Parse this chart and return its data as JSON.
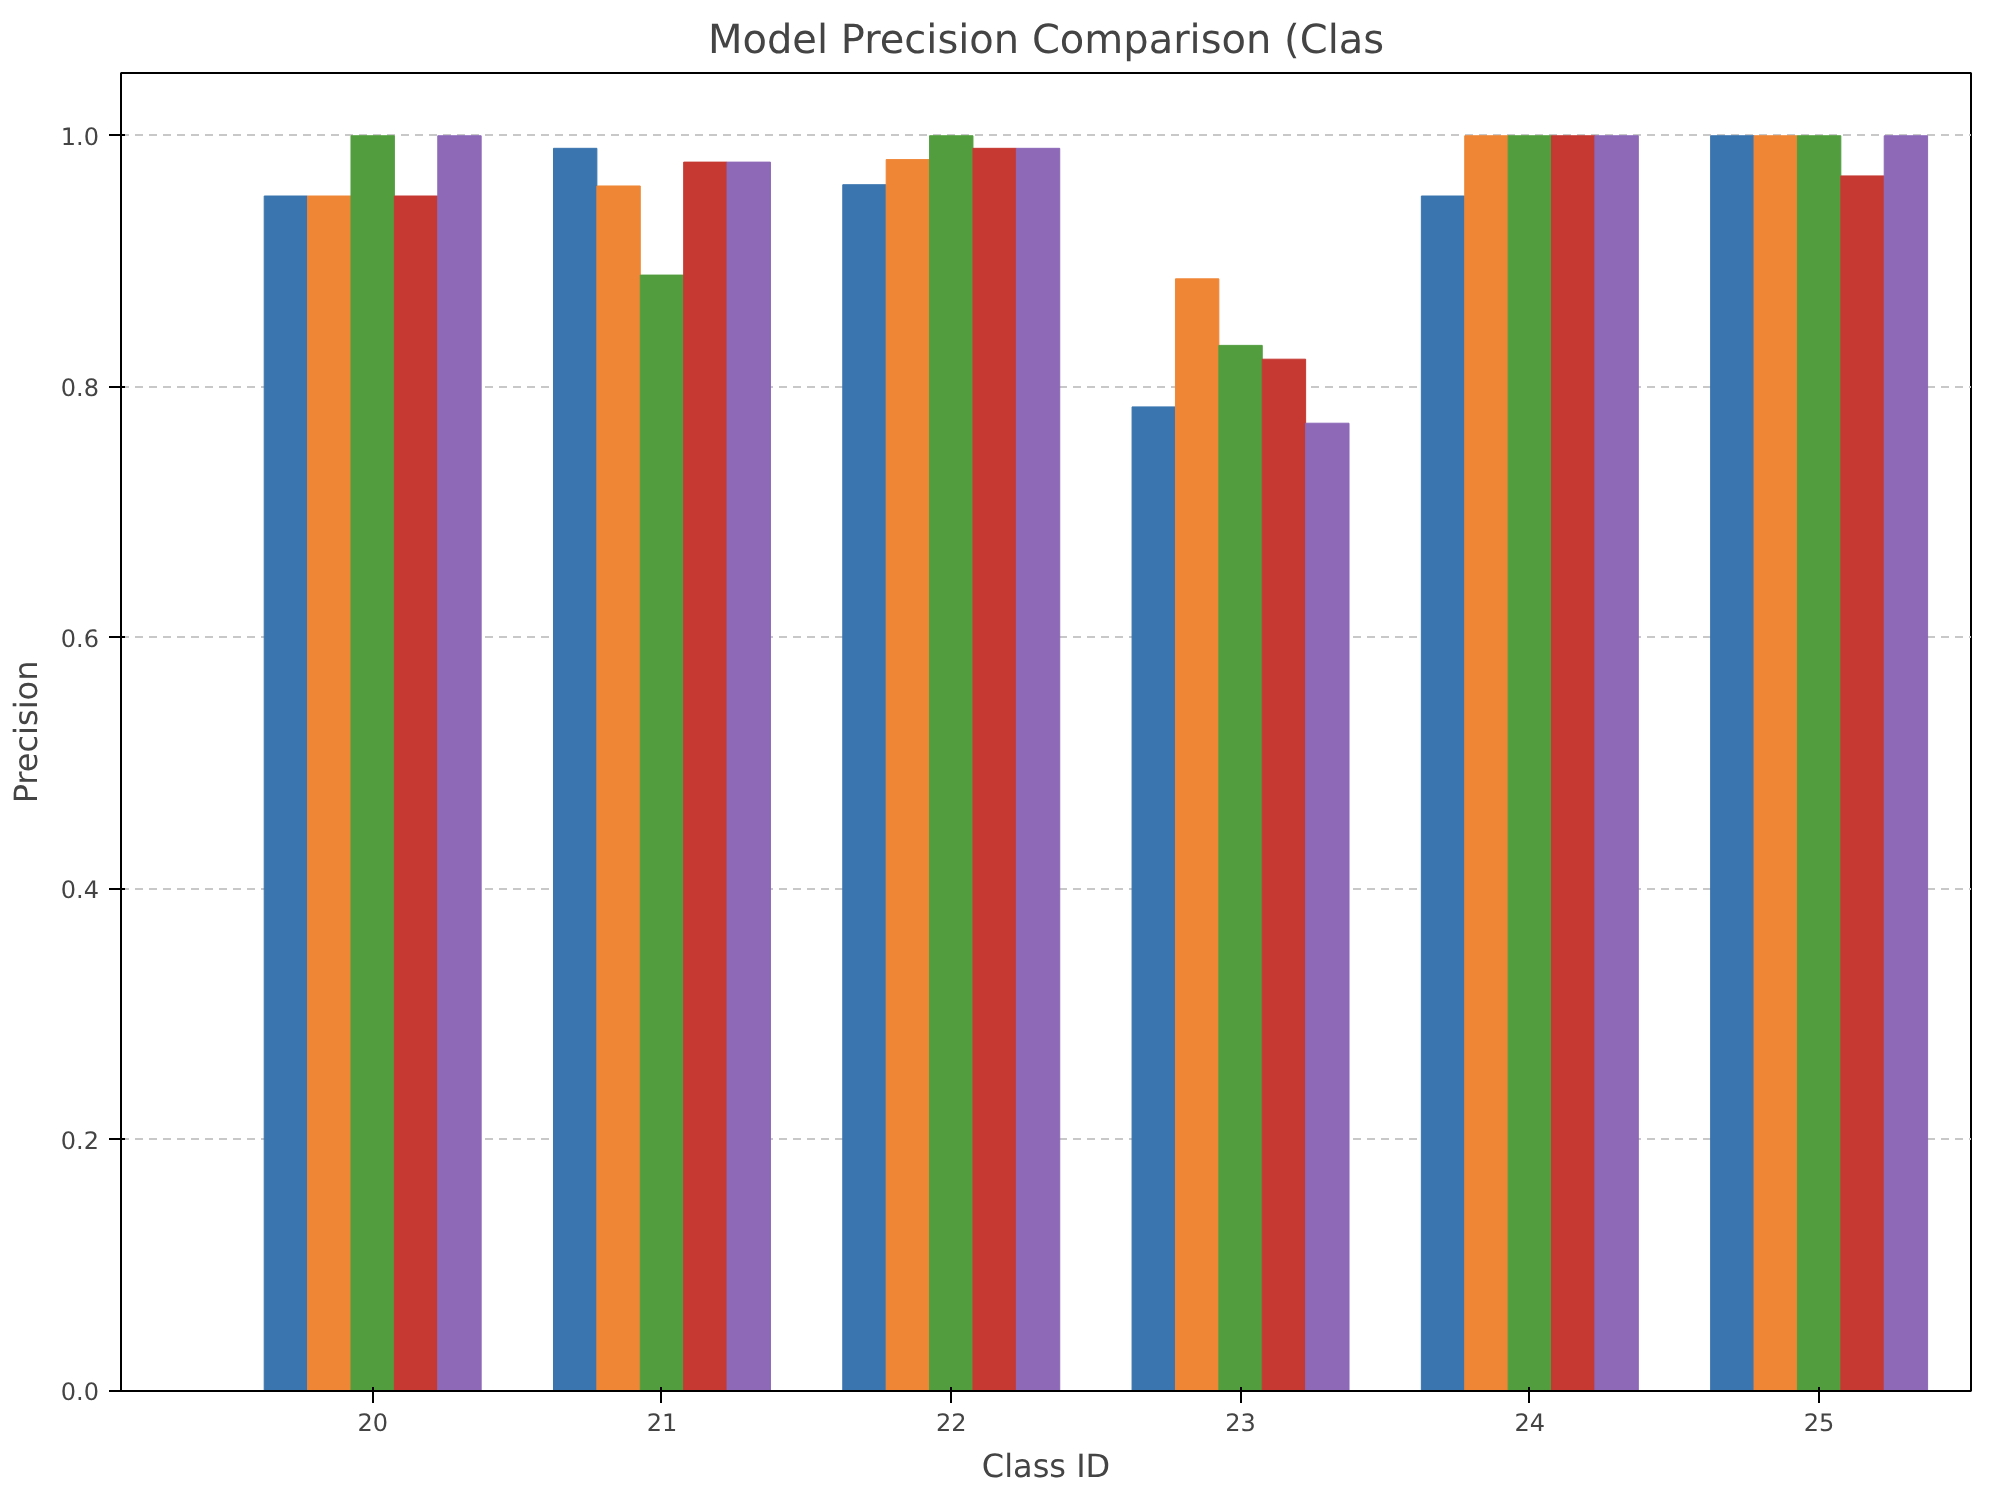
{
  "chart_data": {
    "type": "bar",
    "title": "Model Precision Comparison (Clas",
    "xlabel": "Class ID",
    "ylabel": "Precision",
    "categories": [
      "20",
      "21",
      "22",
      "23",
      "24",
      "25"
    ],
    "series": [
      {
        "color": "#3a75af",
        "values": [
          0.952,
          0.99,
          0.961,
          0.784,
          0.952,
          1.0
        ]
      },
      {
        "color": "#ef8636",
        "values": [
          0.952,
          0.96,
          0.981,
          0.886,
          1.0,
          1.0
        ]
      },
      {
        "color": "#529e3e",
        "values": [
          1.0,
          0.889,
          1.0,
          0.833,
          1.0,
          1.0
        ]
      },
      {
        "color": "#c53932",
        "values": [
          0.952,
          0.979,
          0.99,
          0.822,
          1.0,
          0.968
        ]
      },
      {
        "color": "#8d69b8",
        "values": [
          1.0,
          0.979,
          0.99,
          0.771,
          1.0,
          1.0
        ]
      }
    ],
    "ylim": [
      0,
      1.05
    ],
    "yticks": [
      {
        "value": 0,
        "label": "0.0"
      },
      0.2,
      0.4,
      0.6,
      0.8,
      {
        "value": 1,
        "label": "1.0"
      }
    ],
    "grid": "y"
  }
}
